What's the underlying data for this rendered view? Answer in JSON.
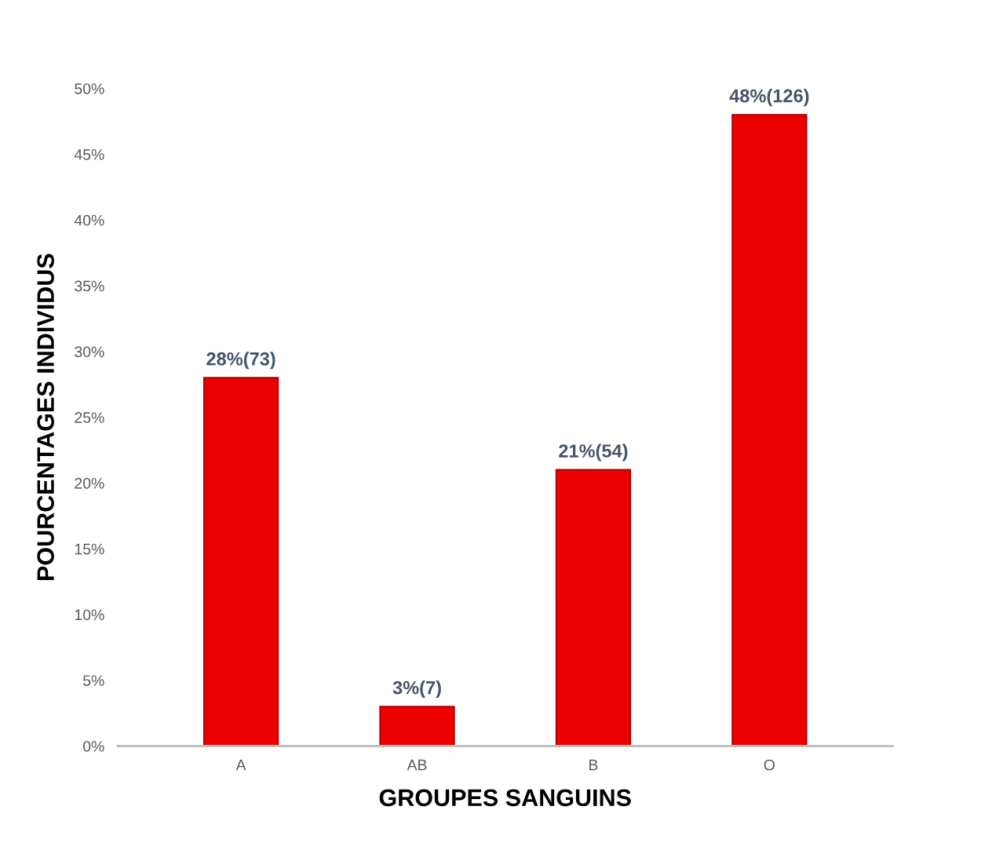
{
  "chart_data": {
    "type": "bar",
    "xlabel": "GROUPES SANGUINS",
    "ylabel": "POURCENTAGES INDIVIDUS",
    "categories": [
      "A",
      "AB",
      "B",
      "O"
    ],
    "values": [
      28,
      3,
      21,
      48
    ],
    "value_labels": [
      "28%(73)",
      "3%(7)",
      "21%(54)",
      "48%(126)"
    ],
    "color": "#ee0000",
    "ylim": [
      0,
      50
    ],
    "yticks": [
      {
        "value": 0,
        "label": "0%"
      },
      {
        "value": 5,
        "label": "5%"
      },
      {
        "value": 10,
        "label": "10%"
      },
      {
        "value": 15,
        "label": "15%"
      },
      {
        "value": 20,
        "label": "20%"
      },
      {
        "value": 25,
        "label": "25%"
      },
      {
        "value": 30,
        "label": "30%"
      },
      {
        "value": 35,
        "label": "35%"
      },
      {
        "value": 40,
        "label": "40%"
      },
      {
        "value": 45,
        "label": "45%"
      },
      {
        "value": 50,
        "label": "50%"
      }
    ],
    "grid": false
  }
}
